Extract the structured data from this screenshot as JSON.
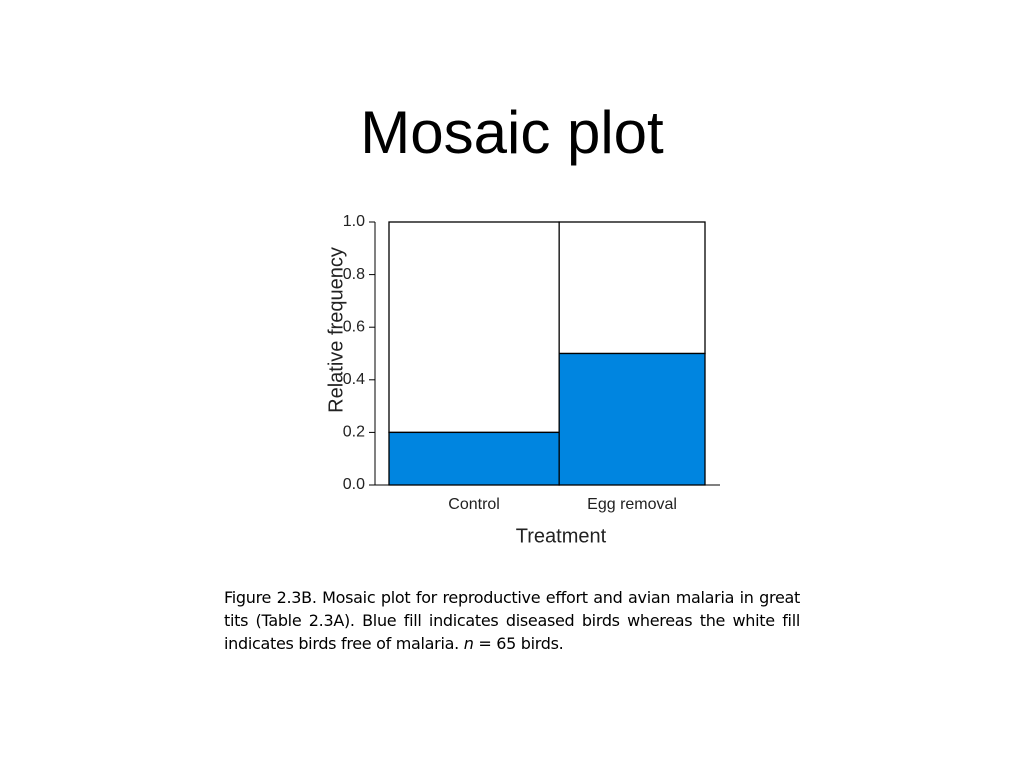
{
  "title": "Mosaic plot",
  "chart_data": {
    "type": "mosaic",
    "categories": [
      "Control",
      "Egg removal"
    ],
    "widths": [
      35,
      30
    ],
    "values": [
      0.2,
      0.5
    ],
    "color": "#0085e0",
    "rest_color": "#ffffff",
    "ylim": [
      0,
      1
    ],
    "yticks": [
      {
        "value": 0,
        "label": "0.0"
      },
      {
        "value": 0.2,
        "label": "0.2"
      },
      {
        "value": 0.4,
        "label": "0.4"
      },
      {
        "value": 0.6,
        "label": "0.6"
      },
      {
        "value": 0.8,
        "label": "0.8"
      },
      {
        "value": 1,
        "label": "1.0"
      }
    ],
    "xlabel": "Treatment",
    "ylabel": "Relative frequency"
  },
  "caption": {
    "before": "Figure 2.3B. Mosaic plot for reproductive effort and avian malaria in great tits (Table 2.3A). Blue fill indicates diseased birds whereas the white fill indicates birds free of malaria. ",
    "italic": "n",
    "after": " = 65 birds."
  }
}
